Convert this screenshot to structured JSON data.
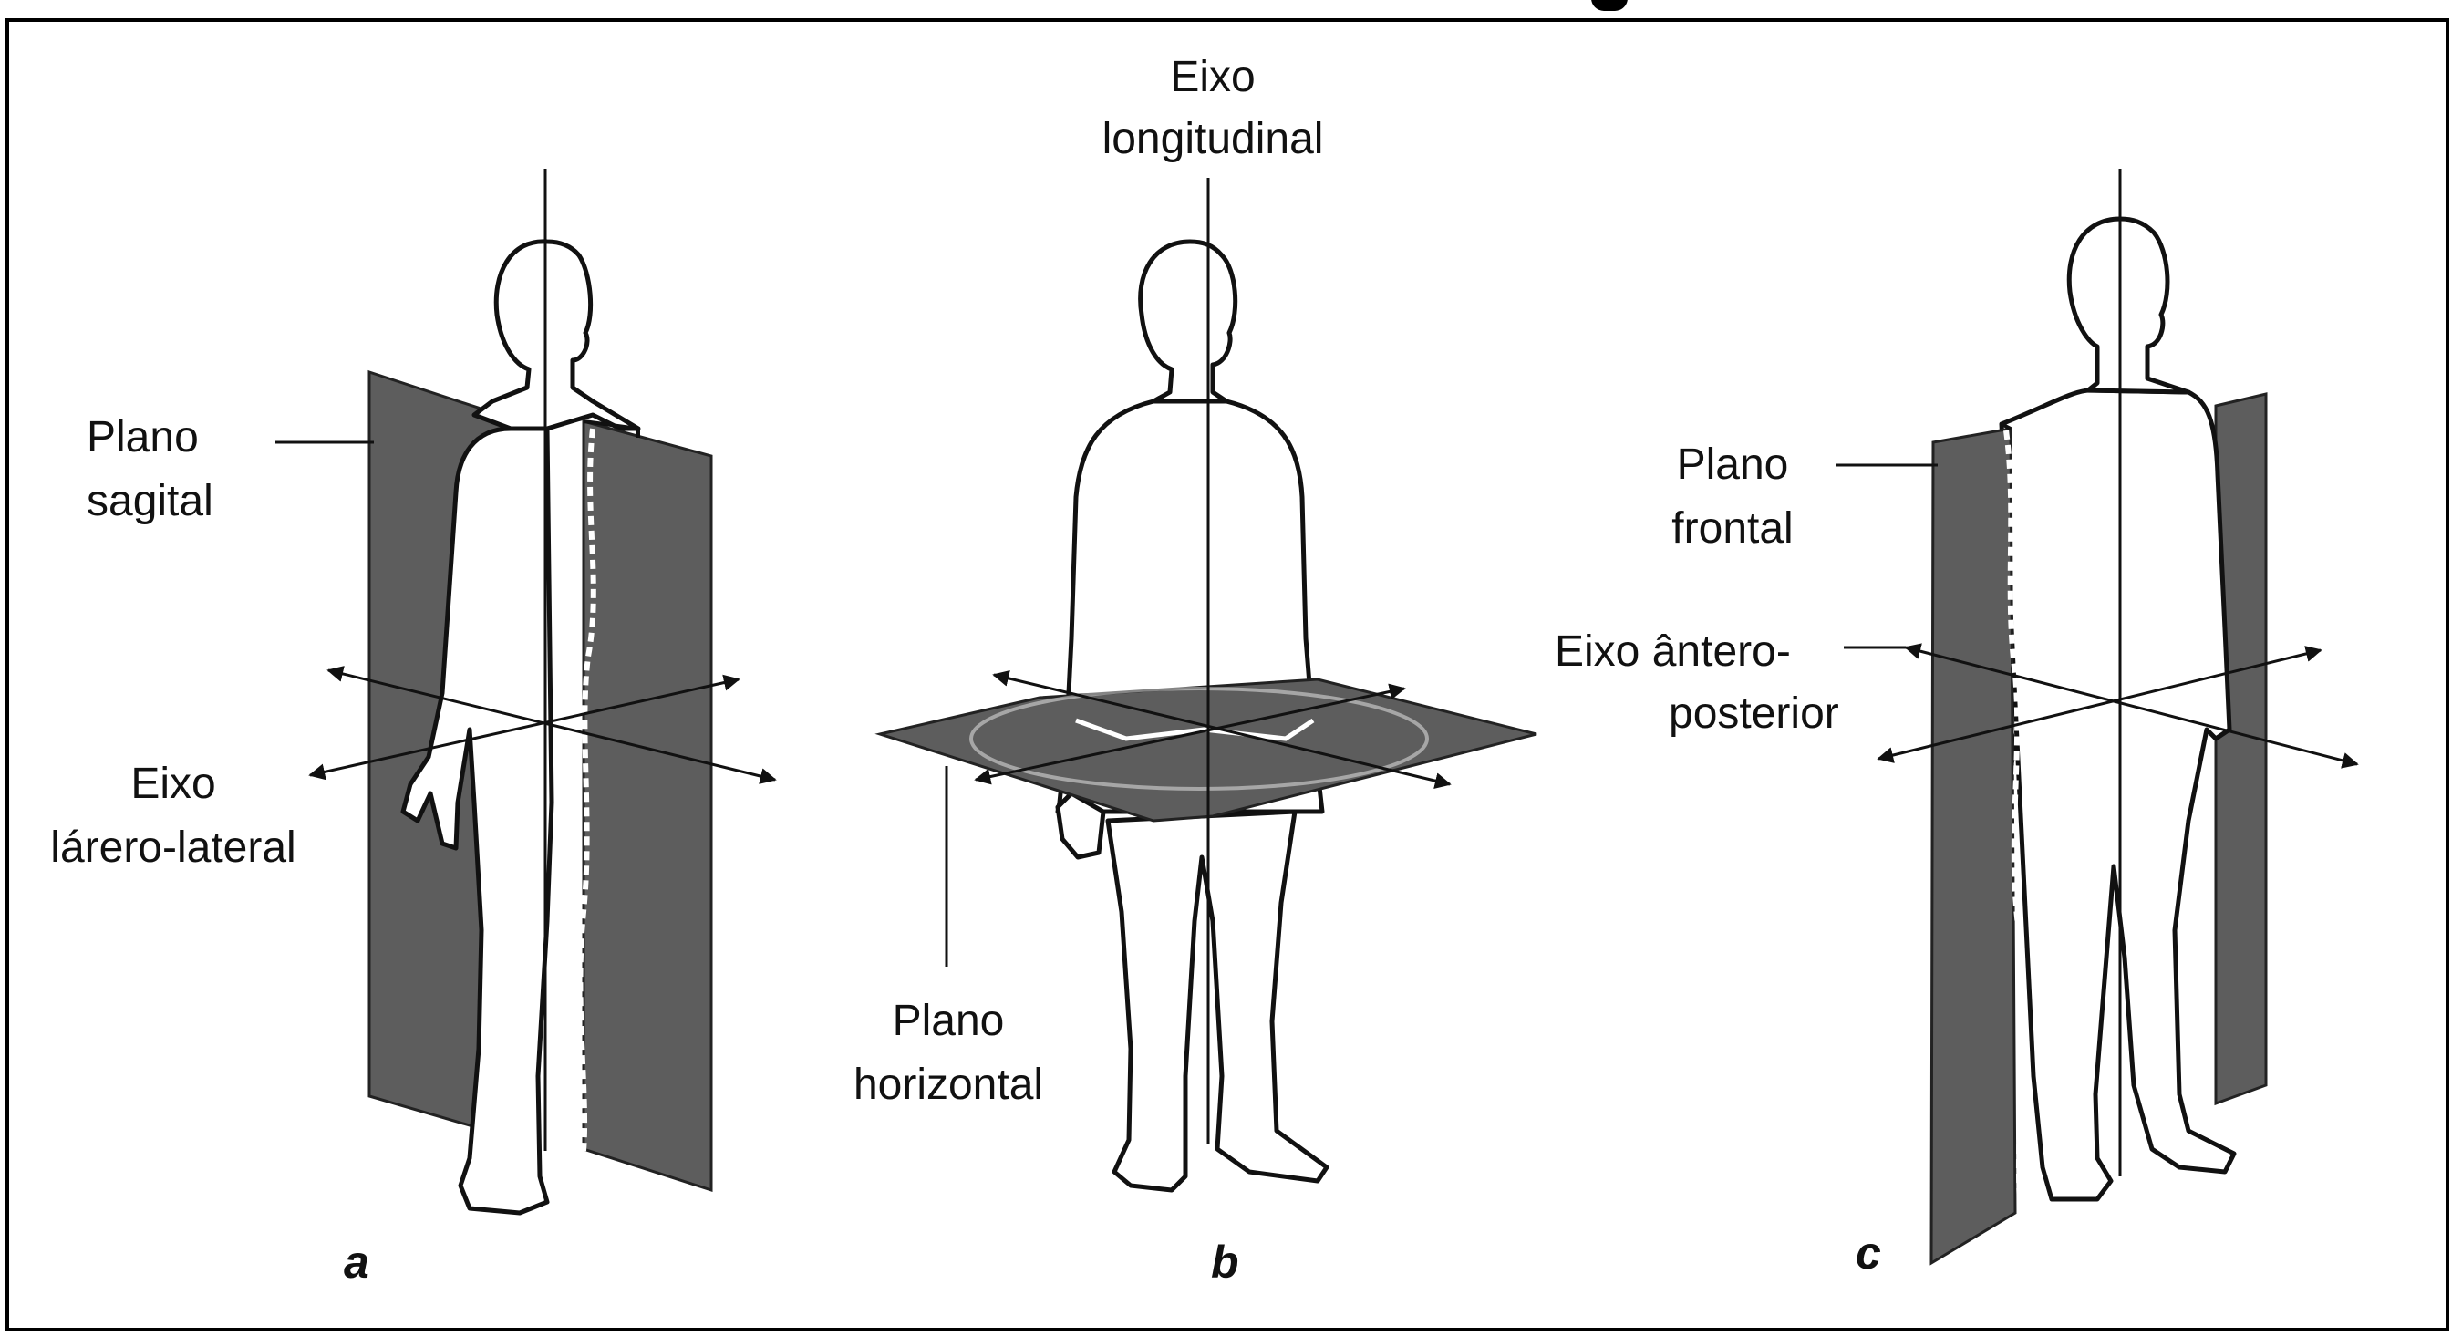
{
  "panels": {
    "a": {
      "letter": "a",
      "plane_label_1": "Plano",
      "plane_label_2": "sagital",
      "axis_label_1": "Eixo",
      "axis_label_2": "lárero-lateral"
    },
    "b": {
      "letter": "b",
      "axis_label_1": "Eixo",
      "axis_label_2": "longitudinal",
      "plane_label_1": "Plano",
      "plane_label_2": "horizontal"
    },
    "c": {
      "letter": "c",
      "plane_label_1": "Plano",
      "plane_label_2": "frontal",
      "axis_label_1": "Eixo ântero-",
      "axis_label_2": "posterior"
    }
  },
  "colors": {
    "plane_fill": "#5d5d5d",
    "line": "#111111",
    "border": "#000000"
  }
}
